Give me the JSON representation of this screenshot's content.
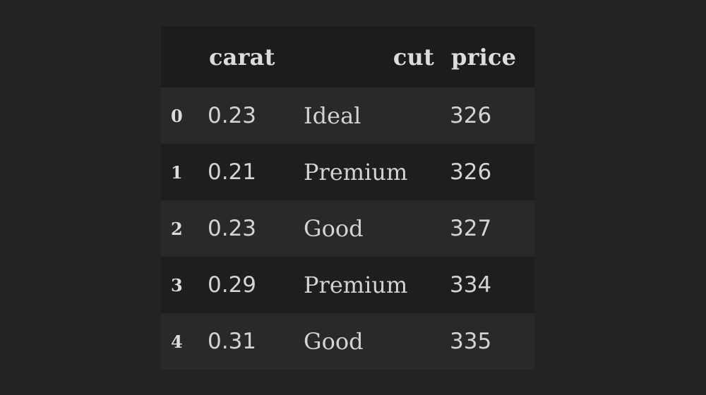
{
  "table": {
    "columns": [
      "",
      "carat",
      "cut",
      "price"
    ],
    "rows": [
      {
        "index": "0",
        "carat": "0.23",
        "cut": "Ideal",
        "price": "326"
      },
      {
        "index": "1",
        "carat": "0.21",
        "cut": "Premium",
        "price": "326"
      },
      {
        "index": "2",
        "carat": "0.23",
        "cut": "Good",
        "price": "327"
      },
      {
        "index": "3",
        "carat": "0.29",
        "cut": "Premium",
        "price": "334"
      },
      {
        "index": "4",
        "carat": "0.31",
        "cut": "Good",
        "price": "335"
      }
    ]
  },
  "colors": {
    "page_background": "#232323",
    "header_background": "#1c1c1c",
    "row_odd_background": "#292929",
    "row_even_background": "#1e1e1e",
    "text": "#d6d6d6"
  }
}
